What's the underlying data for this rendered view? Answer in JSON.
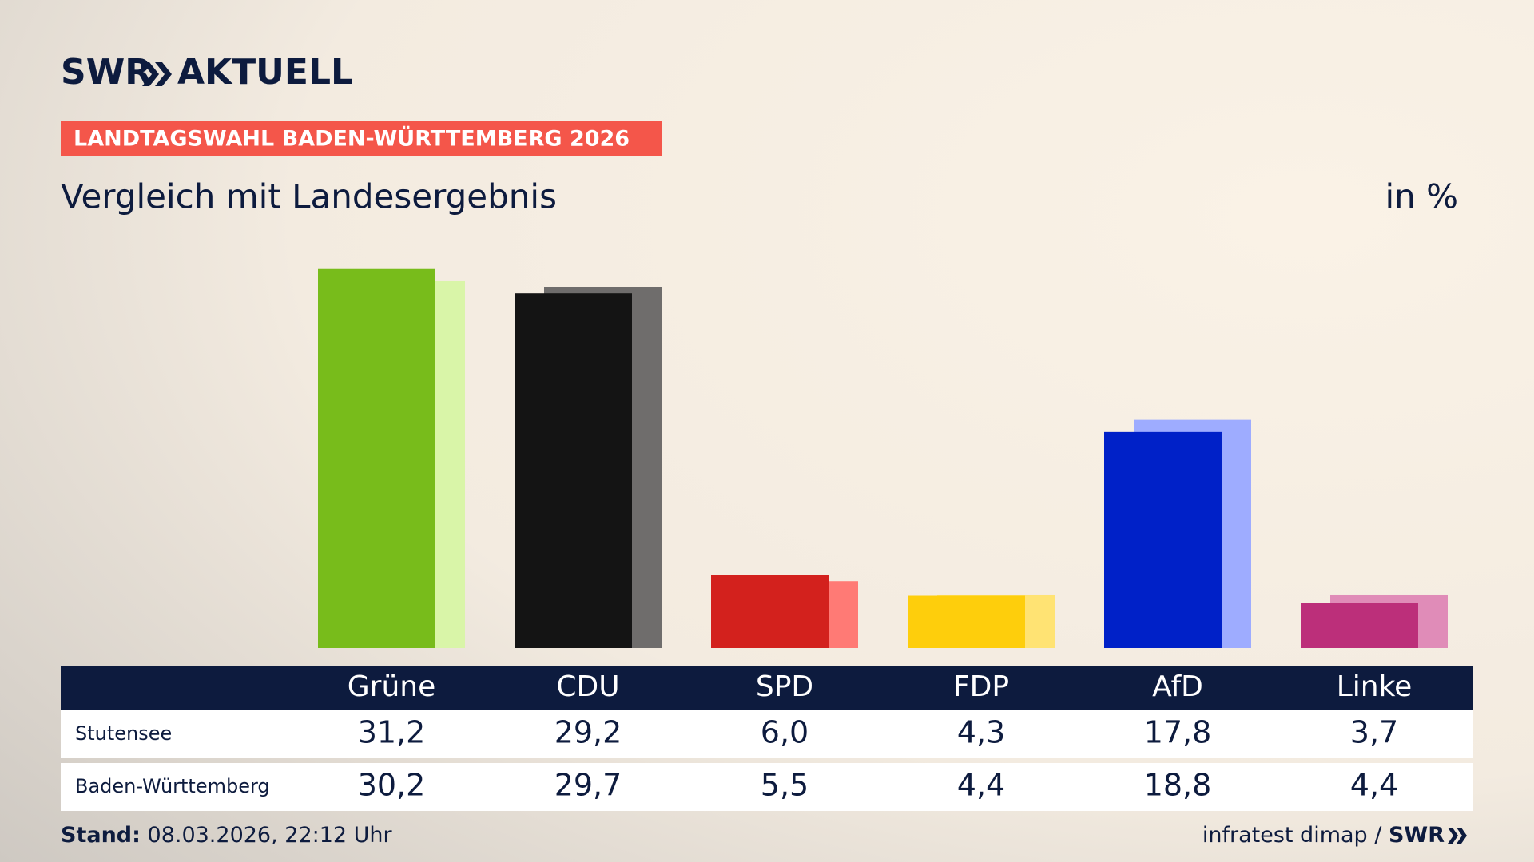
{
  "header": {
    "brand": "SWR",
    "product": "AKTUELL"
  },
  "chart_data": {
    "type": "bar",
    "title": "LANDTAGSWAHL BADEN-WÜRTTEMBERG 2026",
    "subtitle": "Vergleich mit Landesergebnis",
    "unit": "in %",
    "categories": [
      "Grüne",
      "CDU",
      "SPD",
      "FDP",
      "AfD",
      "Linke"
    ],
    "series": [
      {
        "name": "Stutensee",
        "colors": [
          "#78bc1b",
          "#141414",
          "#d3211d",
          "#fece0c",
          "#0021c8",
          "#bc2f7a"
        ],
        "values": [
          31.2,
          29.2,
          6.0,
          4.3,
          17.8,
          3.7
        ],
        "value_labels": [
          "31,2",
          "29,2",
          "6,0",
          "4,3",
          "17,8",
          "3,7"
        ]
      },
      {
        "name": "Baden-Württemberg",
        "colors": [
          "#d9f5a8",
          "#6f6d6c",
          "#ff7a75",
          "#ffe373",
          "#9eacff",
          "#e08cb8"
        ],
        "values": [
          30.2,
          29.7,
          5.5,
          4.4,
          18.8,
          4.4
        ],
        "value_labels": [
          "30,2",
          "29,7",
          "5,5",
          "4,4",
          "18,8",
          "4,4"
        ]
      }
    ]
  },
  "footer": {
    "stand_label": "Stand:",
    "stand": "08.03.2026, 22:12 Uhr",
    "source": "infratest dimap /",
    "source_brand": "SWR"
  }
}
